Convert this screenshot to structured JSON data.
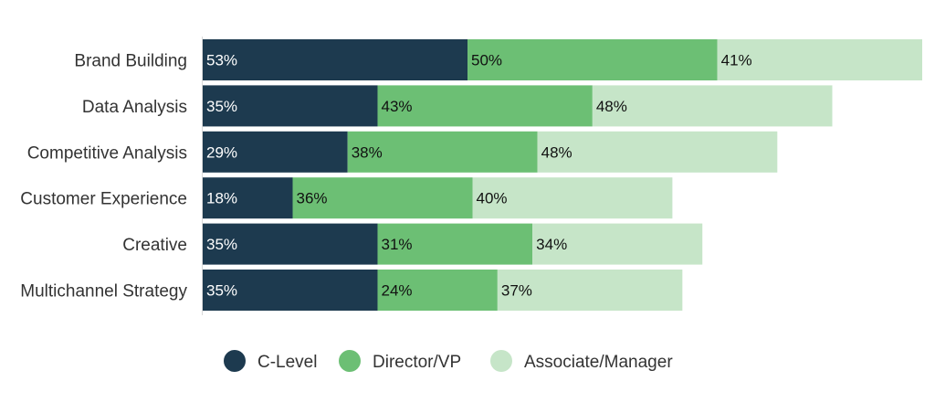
{
  "chart_data": {
    "type": "bar",
    "orientation": "horizontal",
    "stacked": true,
    "categories": [
      "Brand Building",
      "Data Analysis",
      "Competitive Analysis",
      "Customer Experience",
      "Creative",
      "Multichannel Strategy"
    ],
    "series": [
      {
        "name": "C-Level",
        "color": "#1d3a4f",
        "label_color": "#ffffff",
        "values": [
          53,
          35,
          29,
          18,
          35,
          35
        ]
      },
      {
        "name": "Director/VP",
        "color": "#6cbf74",
        "label_color": "#111111",
        "values": [
          50,
          43,
          38,
          36,
          31,
          24
        ]
      },
      {
        "name": "Associate/Manager",
        "color": "#c6e5c8",
        "label_color": "#111111",
        "values": [
          41,
          48,
          48,
          40,
          34,
          37
        ]
      }
    ],
    "value_suffix": "%",
    "xlim": [
      0,
      144
    ],
    "grid": false,
    "legend": "bottom-center"
  }
}
